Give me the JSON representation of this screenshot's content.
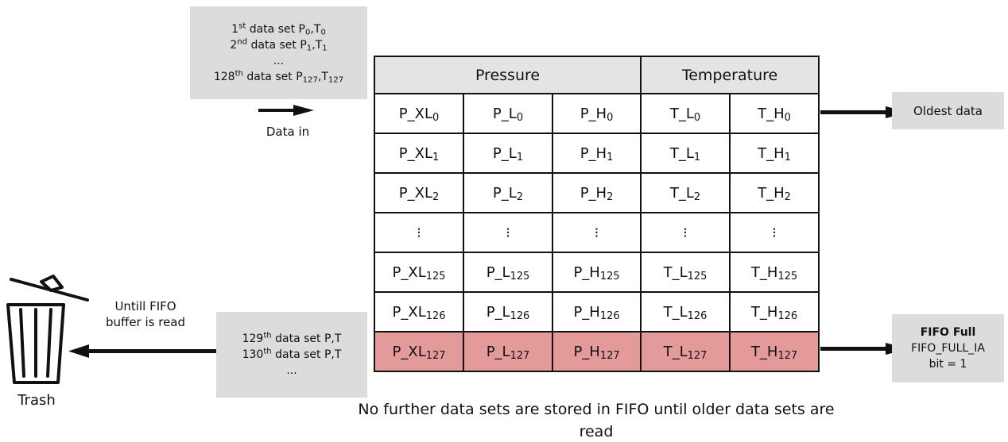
{
  "input_box": {
    "lines": [
      {
        "ord": "1",
        "sup": "st",
        "text": " data set P",
        "a": "0",
        "sep": ",T",
        "b": "0"
      },
      {
        "ord": "2",
        "sup": "nd",
        "text": " data set P",
        "a": "1",
        "sep": ",T",
        "b": "1"
      },
      {
        "ellipsis": "..."
      },
      {
        "ord": "128",
        "sup": "th",
        "text": " data set P",
        "a": "127",
        "sep": ",T",
        "b": "127"
      }
    ]
  },
  "data_in_label": "Data in",
  "table": {
    "headers": [
      {
        "label": "Pressure",
        "span": 3
      },
      {
        "label": "Temperature",
        "span": 2
      }
    ],
    "rows": [
      {
        "cells": [
          [
            "P_XL",
            "0"
          ],
          [
            "P_L",
            "0"
          ],
          [
            "P_H",
            "0"
          ],
          [
            "T_L",
            "0"
          ],
          [
            "T_H",
            "0"
          ]
        ]
      },
      {
        "cells": [
          [
            "P_XL",
            "1"
          ],
          [
            "P_L",
            "1"
          ],
          [
            "P_H",
            "1"
          ],
          [
            "T_L",
            "1"
          ],
          [
            "T_H",
            "1"
          ]
        ]
      },
      {
        "cells": [
          [
            "P_XL",
            "2"
          ],
          [
            "P_L",
            "2"
          ],
          [
            "P_H",
            "2"
          ],
          [
            "T_L",
            "2"
          ],
          [
            "T_H",
            "2"
          ]
        ]
      },
      {
        "cells": [
          [
            "⁝",
            ""
          ],
          [
            "⁝",
            ""
          ],
          [
            "⁝",
            ""
          ],
          [
            "⁝",
            ""
          ],
          [
            "⁝",
            ""
          ]
        ],
        "dots": true
      },
      {
        "cells": [
          [
            "P_XL",
            "125"
          ],
          [
            "P_L",
            "125"
          ],
          [
            "P_H",
            "125"
          ],
          [
            "T_L",
            "125"
          ],
          [
            "T_H",
            "125"
          ]
        ]
      },
      {
        "cells": [
          [
            "P_XL",
            "126"
          ],
          [
            "P_L",
            "126"
          ],
          [
            "P_H",
            "126"
          ],
          [
            "T_L",
            "126"
          ],
          [
            "T_H",
            "126"
          ]
        ]
      },
      {
        "cells": [
          [
            "P_XL",
            "127"
          ],
          [
            "P_L",
            "127"
          ],
          [
            "P_H",
            "127"
          ],
          [
            "T_L",
            "127"
          ],
          [
            "T_H",
            "127"
          ]
        ],
        "full": true
      }
    ]
  },
  "oldest_label": "Oldest data",
  "overflow_box": {
    "lines": [
      {
        "ord": "129",
        "sup": "th",
        "text": " data set P,T"
      },
      {
        "ord": "130",
        "sup": "th",
        "text": " data set P,T"
      },
      {
        "ellipsis": "..."
      }
    ]
  },
  "until_label": [
    "Untill FIFO",
    "buffer is read"
  ],
  "trash_label": "Trash",
  "fifo_full": {
    "title": "FIFO Full",
    "flag": "FIFO_FULL_IA",
    "bit": "bit = 1"
  },
  "caption": "No further data sets are stored in FIFO until older data sets are read",
  "colors": {
    "box_gray": "#dcdcdc",
    "header_gray": "#e4e4e4",
    "full_row": "#e59a9a"
  }
}
